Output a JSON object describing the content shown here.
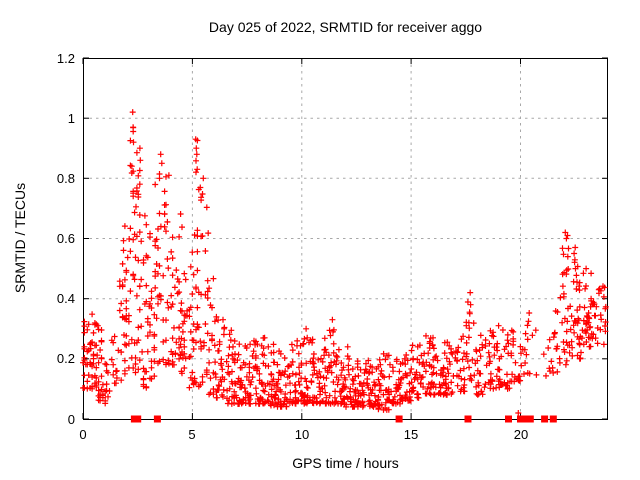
{
  "window": {
    "background": "#ffffff"
  },
  "chart_data": {
    "type": "scatter",
    "title": "Day 025 of 2022, SRMTID for receiver aggo",
    "xlabel": "GPS time / hours",
    "ylabel": "SRMTID / TECUs",
    "xlim": [
      0,
      24
    ],
    "ylim": [
      0,
      1.2
    ],
    "xticks": {
      "values": [
        0,
        5,
        10,
        15,
        20
      ],
      "labels": [
        "0",
        "5",
        "10",
        "15",
        "20"
      ]
    },
    "yticks": {
      "values": [
        0,
        0.2,
        0.4,
        0.6,
        0.8,
        1,
        1.2
      ],
      "labels": [
        "0",
        "0.2",
        "0.4",
        "0.6",
        "0.8",
        "1",
        "1.2"
      ]
    },
    "grid": true,
    "legend": false,
    "colors": {
      "marker": "#ff0000",
      "grid": "#a8a8a8",
      "axis": "#000000"
    },
    "marker": {
      "shape": "plus",
      "size": 7
    },
    "zero_marker": {
      "shape": "filled-square",
      "size": 7
    },
    "summary": "Dense red plus-marker scatter: high variance peaks (up to 1.02 TECUs) between 2 and 6 h, low band ~0.05-0.25 TECUs from 6.5 to 20 h, gap near 21 h, rising cluster up to ~0.62 TECUs from 21.5 to 24 h; isolated square markers on the zero line.",
    "clusters": [
      [
        0.0,
        0.35,
        24,
        0.1,
        0.37,
        1.5
      ],
      [
        0.35,
        0.65,
        26,
        0.1,
        0.35,
        1.5
      ],
      [
        0.65,
        0.95,
        22,
        0.06,
        0.3,
        1.5
      ],
      [
        0.95,
        1.25,
        12,
        0.05,
        0.28,
        1.5
      ],
      [
        1.25,
        1.55,
        10,
        0.1,
        0.3,
        1.5
      ],
      [
        1.55,
        1.85,
        16,
        0.12,
        0.52,
        1.3
      ],
      [
        1.85,
        2.1,
        20,
        0.15,
        0.68,
        1.3
      ],
      [
        2.1,
        2.4,
        28,
        0.15,
        1.0,
        1.6
      ],
      [
        2.4,
        2.7,
        28,
        0.15,
        0.93,
        1.5
      ],
      [
        2.7,
        3.0,
        24,
        0.1,
        0.72,
        1.5
      ],
      [
        3.0,
        3.3,
        20,
        0.13,
        0.62,
        1.5
      ],
      [
        3.3,
        3.6,
        24,
        0.18,
        0.87,
        1.5
      ],
      [
        3.6,
        3.9,
        22,
        0.18,
        0.83,
        1.5
      ],
      [
        3.9,
        4.2,
        20,
        0.18,
        0.68,
        1.5
      ],
      [
        4.2,
        4.5,
        22,
        0.15,
        0.73,
        1.5
      ],
      [
        4.5,
        4.8,
        18,
        0.14,
        0.55,
        1.5
      ],
      [
        4.8,
        5.1,
        20,
        0.1,
        0.57,
        1.4
      ],
      [
        5.1,
        5.4,
        26,
        0.1,
        0.93,
        1.7
      ],
      [
        5.4,
        5.7,
        20,
        0.1,
        0.78,
        1.7
      ],
      [
        5.7,
        6.0,
        20,
        0.08,
        0.5,
        1.6
      ],
      [
        6.0,
        6.5,
        30,
        0.07,
        0.35,
        1.8
      ],
      [
        6.5,
        7.0,
        34,
        0.05,
        0.3,
        1.8
      ],
      [
        7.0,
        7.5,
        34,
        0.05,
        0.25,
        1.8
      ],
      [
        7.5,
        8.0,
        34,
        0.05,
        0.26,
        1.8
      ],
      [
        8.0,
        8.5,
        34,
        0.05,
        0.28,
        1.8
      ],
      [
        8.5,
        9.0,
        34,
        0.04,
        0.25,
        1.8
      ],
      [
        9.0,
        9.5,
        34,
        0.04,
        0.22,
        1.8
      ],
      [
        9.5,
        10.0,
        34,
        0.05,
        0.26,
        1.8
      ],
      [
        10.0,
        10.5,
        34,
        0.05,
        0.28,
        1.8
      ],
      [
        10.5,
        11.0,
        34,
        0.05,
        0.22,
        1.8
      ],
      [
        11.0,
        11.5,
        34,
        0.05,
        0.3,
        1.8
      ],
      [
        11.5,
        12.0,
        34,
        0.05,
        0.25,
        1.8
      ],
      [
        12.0,
        12.5,
        34,
        0.04,
        0.22,
        1.8
      ],
      [
        12.5,
        13.0,
        34,
        0.04,
        0.2,
        1.8
      ],
      [
        13.0,
        13.5,
        34,
        0.04,
        0.2,
        1.8
      ],
      [
        13.5,
        14.0,
        34,
        0.03,
        0.22,
        1.8
      ],
      [
        14.0,
        14.5,
        30,
        0.05,
        0.2,
        1.7
      ],
      [
        14.5,
        15.0,
        30,
        0.06,
        0.22,
        1.7
      ],
      [
        15.0,
        15.5,
        30,
        0.07,
        0.25,
        1.7
      ],
      [
        15.5,
        16.0,
        30,
        0.08,
        0.28,
        1.7
      ],
      [
        16.0,
        16.5,
        30,
        0.08,
        0.25,
        1.7
      ],
      [
        16.5,
        17.0,
        28,
        0.08,
        0.26,
        1.7
      ],
      [
        17.0,
        17.5,
        24,
        0.09,
        0.28,
        1.7
      ],
      [
        17.5,
        17.9,
        18,
        0.12,
        0.42,
        1.2
      ],
      [
        17.9,
        18.4,
        24,
        0.08,
        0.28,
        1.6
      ],
      [
        18.4,
        19.0,
        28,
        0.1,
        0.32,
        1.6
      ],
      [
        19.0,
        19.5,
        24,
        0.1,
        0.3,
        1.6
      ],
      [
        19.5,
        20.0,
        20,
        0.12,
        0.3,
        1.5
      ],
      [
        20.0,
        20.3,
        8,
        0.14,
        0.3,
        1.3
      ],
      [
        20.3,
        20.7,
        8,
        0.15,
        0.36,
        1.2
      ],
      [
        20.7,
        21.3,
        4,
        0.13,
        0.24,
        1.3
      ],
      [
        21.3,
        21.8,
        16,
        0.14,
        0.36,
        1.3
      ],
      [
        21.8,
        22.3,
        30,
        0.18,
        0.58,
        1.5
      ],
      [
        22.3,
        22.8,
        34,
        0.2,
        0.55,
        1.4
      ],
      [
        22.8,
        23.3,
        34,
        0.24,
        0.5,
        1.3
      ],
      [
        23.3,
        23.9,
        26,
        0.24,
        0.45,
        1.3
      ]
    ],
    "outlier_points": [
      [
        2.27,
        1.02
      ],
      [
        2.29,
        0.97
      ],
      [
        2.31,
        0.92
      ],
      [
        2.6,
        0.9
      ],
      [
        2.62,
        0.86
      ],
      [
        3.55,
        0.88
      ],
      [
        3.6,
        0.85
      ],
      [
        5.15,
        0.93
      ],
      [
        5.18,
        0.9
      ],
      [
        5.2,
        0.88
      ],
      [
        5.22,
        0.83
      ],
      [
        5.5,
        0.8
      ],
      [
        6.4,
        0.33
      ],
      [
        6.45,
        0.3
      ],
      [
        8.3,
        0.27
      ],
      [
        10.2,
        0.3
      ],
      [
        10.25,
        0.27
      ],
      [
        11.4,
        0.33
      ],
      [
        11.43,
        0.29
      ],
      [
        11.46,
        0.25
      ],
      [
        12.1,
        0.24
      ],
      [
        13.9,
        0.21
      ],
      [
        16.0,
        0.27
      ],
      [
        17.7,
        0.42
      ],
      [
        17.72,
        0.38
      ],
      [
        17.68,
        0.35
      ],
      [
        19.0,
        0.31
      ],
      [
        19.9,
        0.02
      ],
      [
        22.05,
        0.62
      ],
      [
        22.1,
        0.6
      ],
      [
        22.15,
        0.61
      ],
      [
        22.5,
        0.57
      ],
      [
        22.45,
        0.55
      ],
      [
        23.0,
        0.5
      ]
    ],
    "zero_marker_x": [
      2.35,
      2.5,
      3.4,
      14.45,
      17.6,
      19.45,
      20.0,
      20.2,
      20.45,
      21.1,
      21.5
    ]
  }
}
